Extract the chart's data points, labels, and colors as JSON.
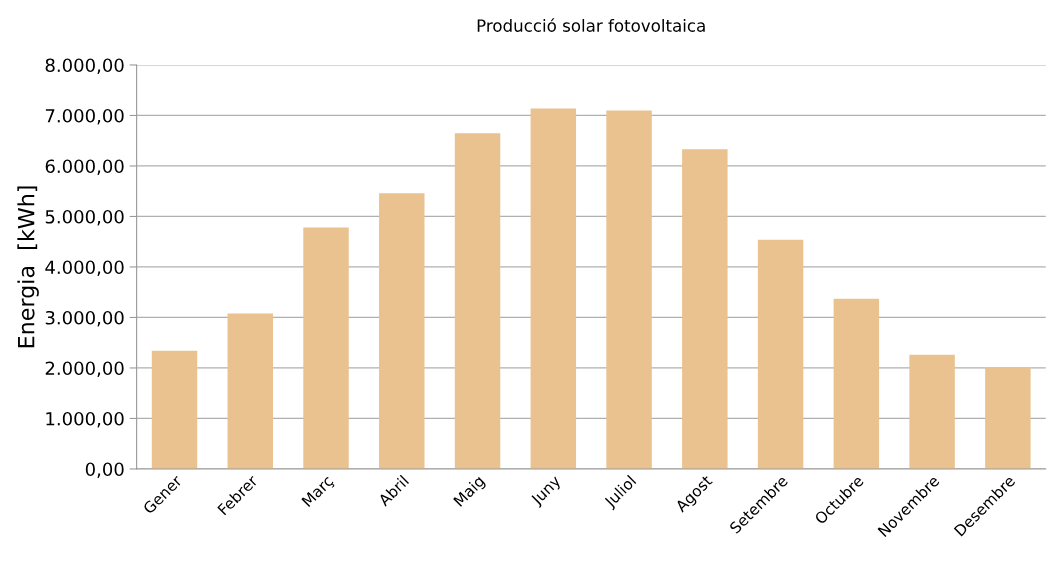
{
  "chart_data": {
    "type": "bar",
    "title": "Producció solar fotovoltaica",
    "ylabel": "Energia  [kWh]",
    "categories": [
      "Gener",
      "Febrer",
      "Març",
      "Abril",
      "Maig",
      "Juny",
      "Juliol",
      "Agost",
      "Setembre",
      "Octubre",
      "Novembre",
      "Desembre"
    ],
    "values": [
      2340,
      3080,
      4780,
      5460,
      6650,
      7140,
      7100,
      6330,
      4540,
      3370,
      2260,
      2020
    ],
    "color": "#e9c28f",
    "ylim": [
      0,
      8000
    ],
    "yticks": [
      {
        "value": 0,
        "label": "0,00"
      },
      {
        "value": 1000,
        "label": "1.000,00"
      },
      {
        "value": 2000,
        "label": "2.000,00"
      },
      {
        "value": 3000,
        "label": "3.000,00"
      },
      {
        "value": 4000,
        "label": "4.000,00"
      },
      {
        "value": 5000,
        "label": "5.000,00"
      },
      {
        "value": 6000,
        "label": "6.000,00"
      },
      {
        "value": 7000,
        "label": "7.000,00"
      },
      {
        "value": 8000,
        "label": "8.000,00"
      }
    ],
    "grid": "y"
  }
}
